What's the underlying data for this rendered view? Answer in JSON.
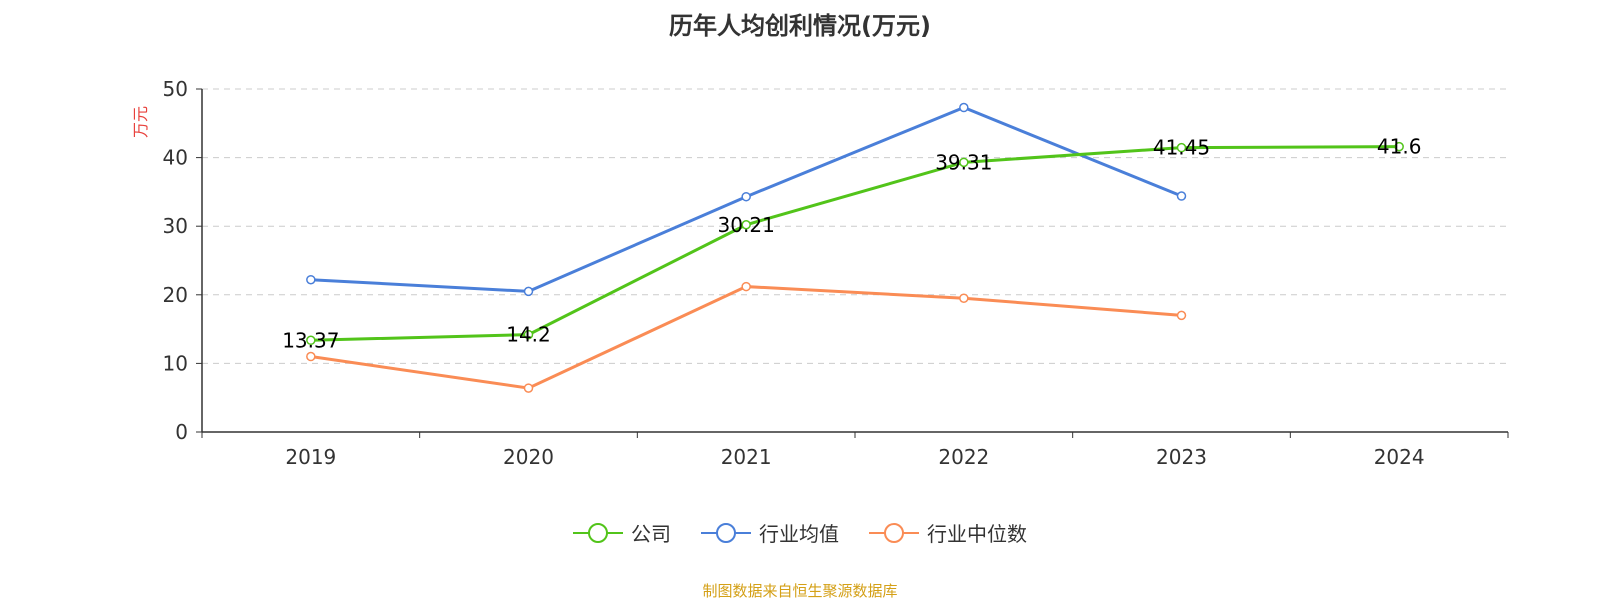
{
  "chart_data": {
    "type": "line",
    "title": "历年人均创利情况(万元)",
    "ylabel": "万元",
    "xlabel": "",
    "ylim": [
      0,
      50
    ],
    "yticks": [
      0,
      10,
      20,
      30,
      40,
      50
    ],
    "grid": true,
    "legend_position": "bottom",
    "categories": [
      "2019",
      "2020",
      "2021",
      "2022",
      "2023",
      "2024"
    ],
    "series": [
      {
        "name": "公司",
        "color": "#52c41a",
        "values": [
          13.37,
          14.2,
          30.21,
          39.31,
          41.45,
          41.6
        ],
        "labels": [
          "13.37",
          "14.2",
          "30.21",
          "39.31",
          "41.45",
          "41.6"
        ],
        "show_labels": true
      },
      {
        "name": "行业均值",
        "color": "#4a7fd9",
        "values": [
          22.2,
          20.5,
          34.3,
          47.3,
          34.4,
          null
        ],
        "show_labels": false
      },
      {
        "name": "行业中位数",
        "color": "#fa8c55",
        "values": [
          11.0,
          6.4,
          21.2,
          19.5,
          17.0,
          null
        ],
        "show_labels": false
      }
    ]
  },
  "source": {
    "text": "制图数据来自恒生聚源数据库",
    "color": "#d4a017"
  },
  "ylabel_color": "#e8413c"
}
